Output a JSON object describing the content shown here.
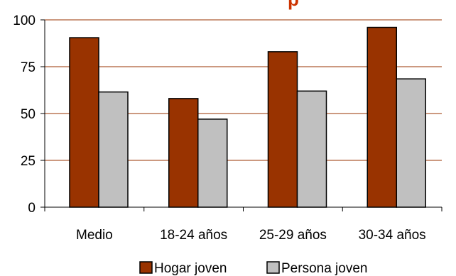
{
  "chart_data": {
    "type": "bar",
    "categories": [
      "Medio",
      "18-24 años",
      "25-29 años",
      "30-34 años"
    ],
    "series": [
      {
        "name": "Hogar joven",
        "color": "#993300",
        "values": [
          90.5,
          58,
          83,
          96
        ]
      },
      {
        "name": "Persona joven",
        "color": "#c0c0c0",
        "values": [
          61.5,
          47,
          62,
          68.5
        ]
      }
    ],
    "ylim": [
      0,
      100
    ],
    "yticks": [
      0,
      25,
      50,
      75,
      100
    ],
    "ytick_labels": [
      "0",
      "25",
      "50",
      "75",
      "100"
    ],
    "gridlines": true,
    "gridline_color": "#993300",
    "legend_position": "bottom",
    "title_fragment": "p",
    "title_color": "#cc3300"
  }
}
